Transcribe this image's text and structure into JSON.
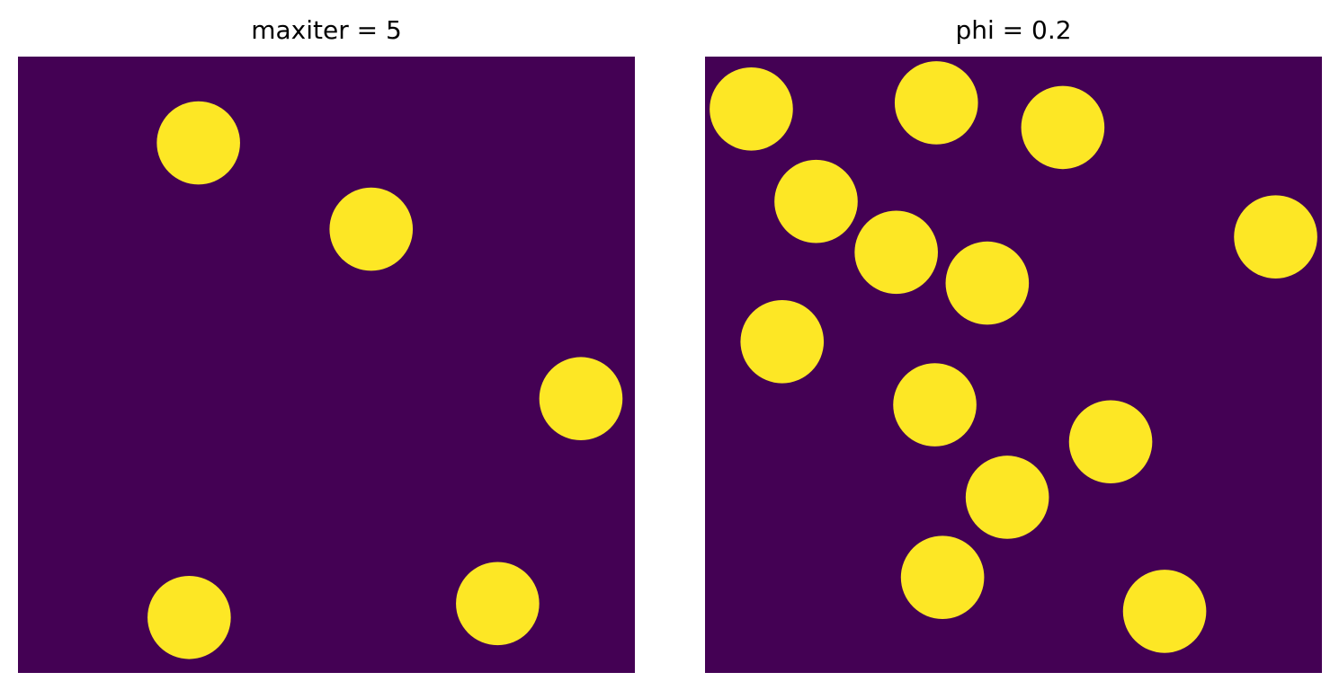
{
  "colors": {
    "background": "#440154",
    "particle": "#fde725"
  },
  "chart_data": [
    {
      "type": "scatter",
      "title": "maxiter = 5",
      "xlim": [
        0,
        200
      ],
      "ylim": [
        0,
        200
      ],
      "axis": "off",
      "marker": "filled-circle",
      "radius": 13.5,
      "points": [
        {
          "x": 58.5,
          "y": 28
        },
        {
          "x": 114.5,
          "y": 56
        },
        {
          "x": 182.5,
          "y": 111
        },
        {
          "x": 55.5,
          "y": 182
        },
        {
          "x": 155.5,
          "y": 177.5
        }
      ]
    },
    {
      "type": "scatter",
      "title": "phi = 0.2",
      "xlim": [
        0,
        200
      ],
      "ylim": [
        0,
        200
      ],
      "axis": "off",
      "marker": "filled-circle",
      "radius": 13.5,
      "points": [
        {
          "x": 15,
          "y": 17
        },
        {
          "x": 75,
          "y": 15
        },
        {
          "x": 116,
          "y": 23
        },
        {
          "x": 36,
          "y": 47
        },
        {
          "x": 62,
          "y": 63.5
        },
        {
          "x": 91.5,
          "y": 73.5
        },
        {
          "x": 185,
          "y": 58.5
        },
        {
          "x": 25,
          "y": 92.5
        },
        {
          "x": 74.5,
          "y": 113
        },
        {
          "x": 131.5,
          "y": 125
        },
        {
          "x": 98,
          "y": 143
        },
        {
          "x": 77,
          "y": 169
        },
        {
          "x": 149,
          "y": 180
        }
      ]
    }
  ]
}
